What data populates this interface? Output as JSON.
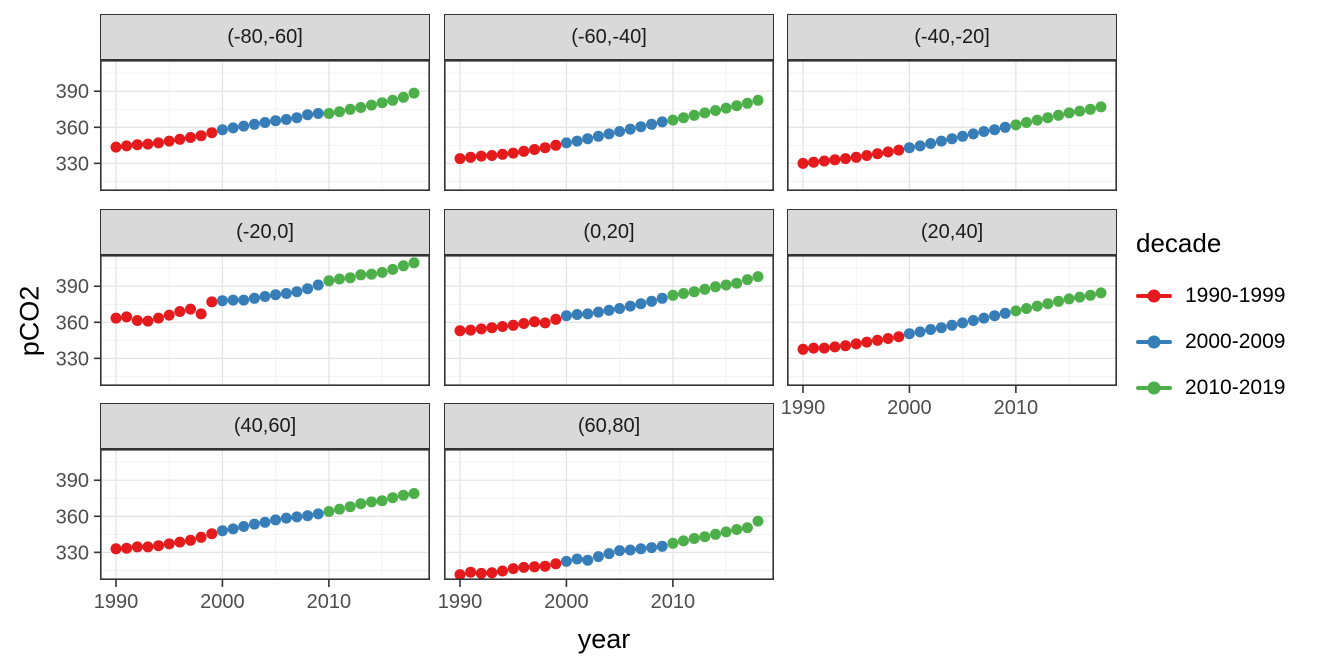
{
  "chart_data": {
    "type": "scatter",
    "title": "",
    "xlabel": "year",
    "ylabel": "pCO2",
    "grid": true,
    "x_ticks": [
      1990,
      2000,
      2010
    ],
    "x_minor_ticks": [
      1995,
      2005,
      2015
    ],
    "y_ticks": [
      330,
      360,
      390
    ],
    "y_minor_ticks": [
      315,
      345,
      375,
      405
    ],
    "x_range": [
      1988.5,
      2019.5
    ],
    "y_range": [
      307,
      416
    ],
    "year_start": 1990,
    "legend": {
      "title": "decade",
      "position": "right",
      "entries": [
        {
          "label": "1990-1999",
          "color": "#E41A1C"
        },
        {
          "label": "2000-2009",
          "color": "#377EB8"
        },
        {
          "label": "2010-2019",
          "color": "#4DAF4A"
        }
      ]
    },
    "theme": {
      "strip_fill": "#D9D9D9",
      "panel_border": "#333333",
      "grid_major": "#E4E4E4",
      "grid_minor": "#F1F1F1",
      "tick_label_color": "#4D4D4D",
      "tick_mark_color": "#333333"
    },
    "facets": [
      {
        "label": "(-80,-60]",
        "values": [
          343.5,
          344.5,
          345.5,
          346,
          347,
          348.5,
          350,
          351.5,
          353,
          355.5,
          358,
          359.5,
          361,
          362.5,
          364,
          365.5,
          366.5,
          368,
          370.5,
          371.5,
          371.5,
          373,
          375,
          376.5,
          378.5,
          380.5,
          382.5,
          385,
          388.5
        ]
      },
      {
        "label": "(-60,-40]",
        "values": [
          334,
          335,
          336,
          336.5,
          337.5,
          338.5,
          340,
          341.5,
          343,
          345,
          347,
          348.5,
          350.5,
          352.5,
          354.5,
          356.5,
          358.5,
          360.5,
          362.5,
          364.5,
          366,
          368,
          370,
          372,
          374,
          376,
          378,
          380,
          382.5
        ]
      },
      {
        "label": "(-40,-20]",
        "values": [
          330,
          331,
          332,
          333,
          334,
          335,
          336.5,
          338,
          339.5,
          341,
          343,
          344.5,
          346.5,
          348.5,
          350.5,
          352.5,
          354.5,
          356.5,
          358,
          360,
          362,
          364,
          366,
          368,
          370,
          372,
          373.5,
          375,
          377
        ]
      },
      {
        "label": "(-20,0]",
        "values": [
          363.5,
          364.5,
          361.5,
          361,
          363.5,
          366,
          369,
          371,
          367,
          377,
          378,
          378.5,
          378.5,
          380,
          381.5,
          383,
          384,
          385.5,
          388,
          391,
          394.5,
          396,
          397,
          399.5,
          400,
          401.5,
          404,
          407,
          409.5
        ]
      },
      {
        "label": "(0,20]",
        "values": [
          353,
          353.5,
          354.5,
          355.5,
          356.5,
          357.5,
          359,
          360.5,
          359.5,
          362.5,
          365.5,
          366.5,
          367,
          368.5,
          370,
          371.5,
          373.5,
          375.5,
          377.5,
          380,
          382.5,
          384,
          385.5,
          387.5,
          389.5,
          391,
          392.5,
          395.5,
          398
        ]
      },
      {
        "label": "(20,40]",
        "values": [
          337.5,
          338.5,
          338.5,
          339.5,
          340.5,
          342,
          343.5,
          345,
          346.5,
          348,
          350.5,
          352,
          354,
          355.5,
          357.5,
          359.5,
          361.5,
          363.5,
          365.5,
          367.5,
          369.5,
          371.5,
          373.5,
          375.5,
          377.5,
          379.5,
          381,
          382.5,
          384.5
        ]
      },
      {
        "label": "(40,60]",
        "values": [
          333,
          333.5,
          334.5,
          334.5,
          335.5,
          337,
          338.5,
          340,
          342.5,
          345.5,
          348,
          349.5,
          351.5,
          353.5,
          355,
          357,
          358.5,
          359.5,
          360.5,
          362,
          364,
          366,
          368,
          370.5,
          372,
          373,
          375.5,
          377.5,
          379
        ]
      },
      {
        "label": "(60,80]",
        "values": [
          311.5,
          313.5,
          312.5,
          313,
          314.5,
          316.5,
          317.5,
          318,
          318.5,
          320.5,
          322.5,
          324.5,
          323.5,
          326.5,
          329,
          331.5,
          332,
          333,
          334,
          335,
          337.5,
          339.5,
          341.5,
          343,
          345,
          347,
          349,
          350.5,
          356
        ]
      }
    ]
  }
}
